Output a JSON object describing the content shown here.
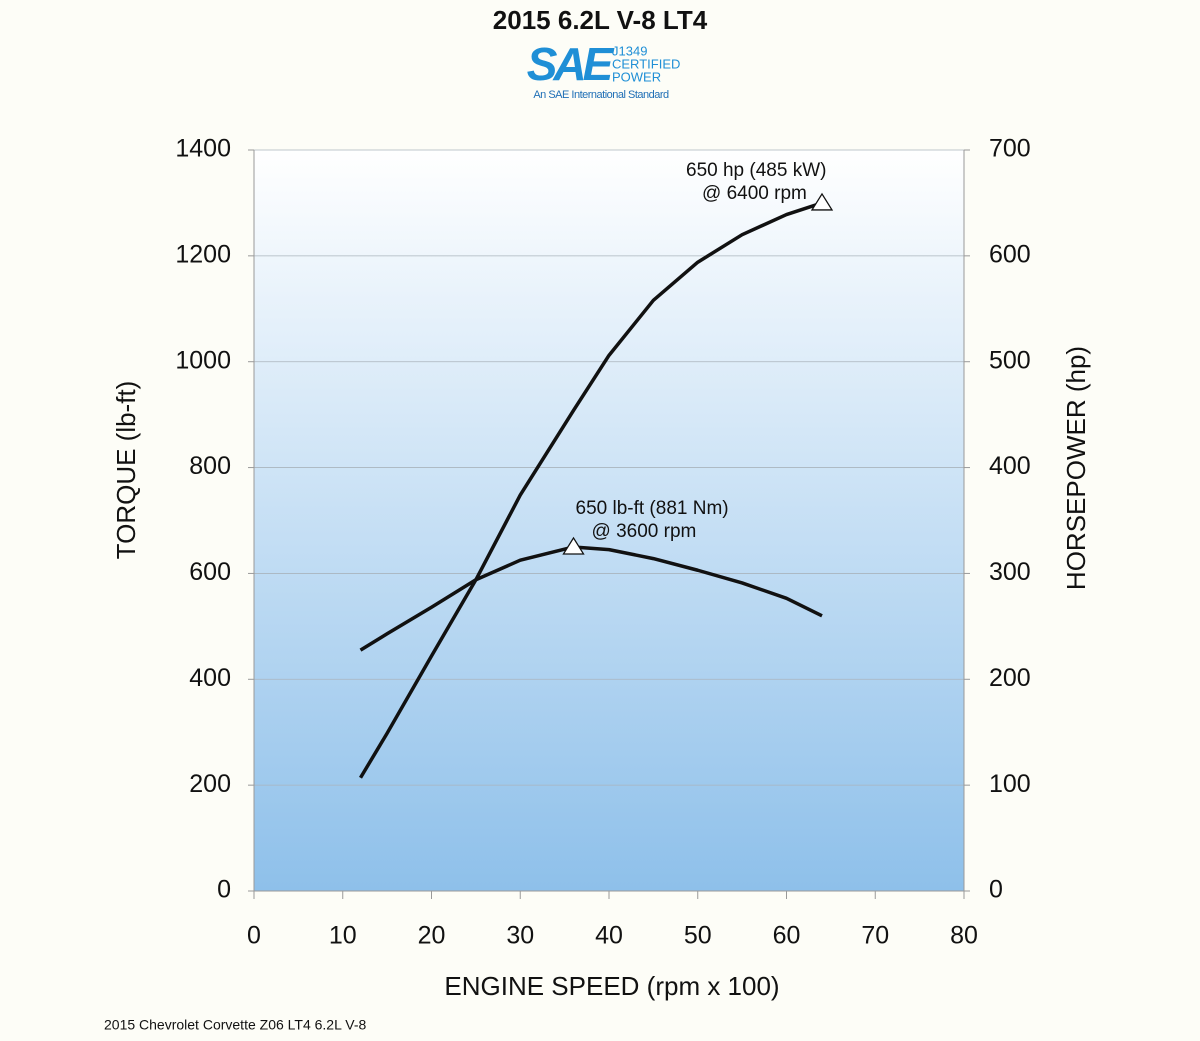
{
  "chart_data": {
    "type": "line",
    "title": "2015 6.2L V-8 LT4",
    "logo": {
      "mark": "SAE",
      "lines": [
        "J1349",
        "CERTIFIED",
        "POWER"
      ],
      "tagline": "An SAE International Standard"
    },
    "x_label": "ENGINE SPEED (rpm x 100)",
    "y_label": "TORQUE (lb-ft)",
    "y2_label": "HORSEPOWER (hp)",
    "footnote": "2015 Chevrolet Corvette Z06 LT4 6.2L V-8",
    "x": [
      12,
      15,
      20,
      25,
      30,
      36,
      40,
      45,
      50,
      55,
      60,
      64
    ],
    "series": [
      {
        "name": "Torque",
        "color": "#111111",
        "axis": "y",
        "values": [
          455,
          486,
          536,
          588,
          625,
          650,
          645,
          628,
          606,
          582,
          553,
          520
        ]
      },
      {
        "name": "Horsepower",
        "color": "#111111",
        "axis": "y2",
        "values": [
          107,
          149,
          222,
          294,
          374,
          454,
          506,
          558,
          594,
          620,
          639,
          650
        ]
      }
    ],
    "annotations": [
      {
        "lines": [
          "650 lb-ft (881 Nm)",
          "@ 3600 rpm"
        ],
        "x": 36,
        "y": 650,
        "axis": "y"
      },
      {
        "lines": [
          "650 hp (485 kW)",
          "@ 6400 rpm"
        ],
        "x": 64,
        "y": 650,
        "axis": "y2"
      }
    ],
    "xlim": [
      0,
      80
    ],
    "xticks": [
      0,
      10,
      20,
      30,
      40,
      50,
      60,
      70,
      80
    ],
    "ylim": [
      0,
      1400
    ],
    "yticks": [
      0,
      200,
      400,
      600,
      800,
      1000,
      1200,
      1400
    ],
    "y2lim": [
      0,
      700
    ],
    "y2ticks": [
      0,
      100,
      200,
      300,
      400,
      500,
      600,
      700
    ],
    "grid": true
  }
}
